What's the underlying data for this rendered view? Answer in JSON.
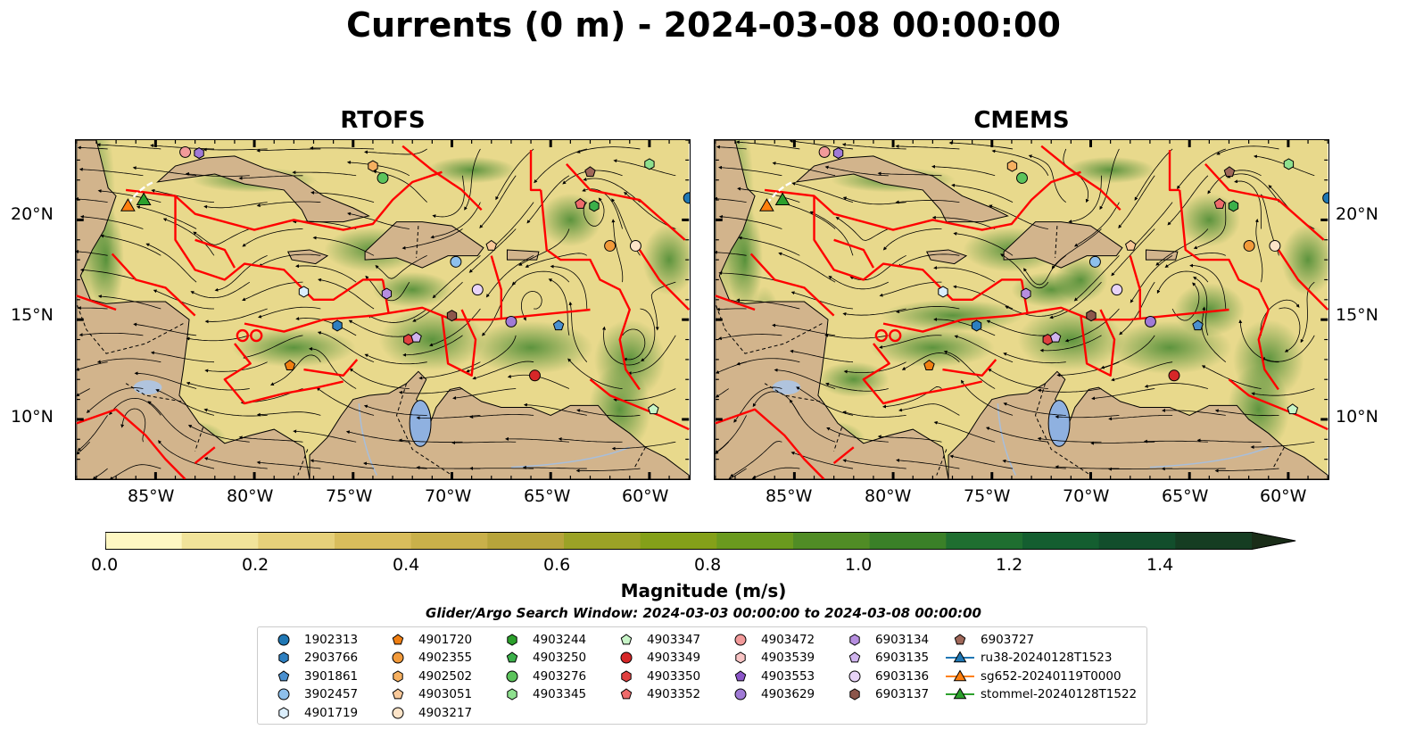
{
  "title": "Currents (0 m) - 2024-03-08 00:00:00",
  "panels": [
    {
      "title": "RTOFS"
    },
    {
      "title": "CMEMS"
    }
  ],
  "map": {
    "lon_range": [
      -89,
      -58
    ],
    "lat_range": [
      7,
      24
    ],
    "lon_ticks": [
      "85°W",
      "80°W",
      "75°W",
      "70°W",
      "65°W",
      "60°W"
    ],
    "lat_ticks": [
      "20°N",
      "15°N",
      "10°N"
    ],
    "colors": {
      "land": "#d2b48c",
      "boundary": "#ff0000",
      "water_bodies": "#8fb1e0",
      "rivers": "#a7bedb"
    }
  },
  "colorbar": {
    "title": "Magnitude (m/s)",
    "ticks": [
      "0.0",
      "0.2",
      "0.4",
      "0.6",
      "0.8",
      "1.0",
      "1.2",
      "1.4"
    ],
    "range": [
      0,
      1.5
    ],
    "extend": "max",
    "colors": [
      "#fef7c2",
      "#f1e39a",
      "#e6d07a",
      "#d9bd5c",
      "#c9b04a",
      "#b7a43b",
      "#9ba226",
      "#84a019",
      "#6a9a1e",
      "#508c25",
      "#3a8028",
      "#1f6e30",
      "#145e30",
      "#124e2c",
      "#153d22",
      "#1a2d18"
    ]
  },
  "search_window": "Glider/Argo Search Window: 2024-03-03 00:00:00 to 2024-03-08 00:00:00",
  "legend": [
    {
      "label": "1902313",
      "marker": "circle",
      "color": "#1f77b4"
    },
    {
      "label": "2903766",
      "marker": "hexagon",
      "color": "#2d7fc0"
    },
    {
      "label": "3901861",
      "marker": "pentagon",
      "color": "#4a90d0"
    },
    {
      "label": "3902457",
      "marker": "circle",
      "color": "#8ec0ec"
    },
    {
      "label": "4901719",
      "marker": "hexagon",
      "color": "#dbeefc"
    },
    {
      "label": "4901720",
      "marker": "pentagon",
      "color": "#f07f12"
    },
    {
      "label": "4902355",
      "marker": "circle",
      "color": "#f29a3a"
    },
    {
      "label": "4902502",
      "marker": "hexagon",
      "color": "#f6b060"
    },
    {
      "label": "4903051",
      "marker": "pentagon",
      "color": "#f9c99a"
    },
    {
      "label": "4903217",
      "marker": "circle",
      "color": "#fde4c8"
    },
    {
      "label": "4903244",
      "marker": "hexagon",
      "color": "#2ca02c"
    },
    {
      "label": "4903250",
      "marker": "pentagon",
      "color": "#3cb04a"
    },
    {
      "label": "4903276",
      "marker": "circle",
      "color": "#5cc45c"
    },
    {
      "label": "4903345",
      "marker": "hexagon",
      "color": "#8ee08e"
    },
    {
      "label": "4903347",
      "marker": "pentagon",
      "color": "#c8f5c8"
    },
    {
      "label": "4903349",
      "marker": "circle",
      "color": "#d62728"
    },
    {
      "label": "4903350",
      "marker": "hexagon",
      "color": "#e04040"
    },
    {
      "label": "4903352",
      "marker": "pentagon",
      "color": "#ee6b6b"
    },
    {
      "label": "4903472",
      "marker": "circle",
      "color": "#f29a9a"
    },
    {
      "label": "4903539",
      "marker": "hexagon",
      "color": "#f8c4c4"
    },
    {
      "label": "4903553",
      "marker": "pentagon",
      "color": "#8b55c8"
    },
    {
      "label": "4903629",
      "marker": "circle",
      "color": "#a07ad6"
    },
    {
      "label": "6903134",
      "marker": "hexagon",
      "color": "#b68ee0"
    },
    {
      "label": "6903135",
      "marker": "pentagon",
      "color": "#d0b4ee"
    },
    {
      "label": "6903136",
      "marker": "circle",
      "color": "#e8d4f8"
    },
    {
      "label": "6903137",
      "marker": "hexagon",
      "color": "#8c564b"
    },
    {
      "label": "6903727",
      "marker": "pentagon",
      "color": "#a0685a"
    },
    {
      "label": "ru38-20240128T1523",
      "marker": "triangle-line",
      "color": "#1f77b4"
    },
    {
      "label": "sg652-20240119T0000",
      "marker": "triangle-line",
      "color": "#ff7f0e"
    },
    {
      "label": "stommel-20240128T1522",
      "marker": "triangle-line",
      "color": "#2ca02c"
    }
  ],
  "floats": [
    {
      "lon": -83.5,
      "lat": 23.4,
      "color": "#f29a9a",
      "marker": "circle"
    },
    {
      "lon": -82.8,
      "lat": 23.35,
      "color": "#a07ad6",
      "marker": "hexagon"
    },
    {
      "lon": -74.0,
      "lat": 22.7,
      "color": "#f6b060",
      "marker": "hexagon"
    },
    {
      "lon": -73.5,
      "lat": 22.1,
      "color": "#5cc45c",
      "marker": "circle"
    },
    {
      "lon": -63.0,
      "lat": 22.4,
      "color": "#a0685a",
      "marker": "pentagon"
    },
    {
      "lon": -60.0,
      "lat": 22.8,
      "color": "#8ee08e",
      "marker": "hexagon"
    },
    {
      "lon": -58.0,
      "lat": 21.1,
      "color": "#1f77b4",
      "marker": "circle"
    },
    {
      "lon": -63.5,
      "lat": 20.8,
      "color": "#ee6b6b",
      "marker": "pentagon"
    },
    {
      "lon": -62.8,
      "lat": 20.7,
      "color": "#3cb04a",
      "marker": "hexagon"
    },
    {
      "lon": -62.0,
      "lat": 18.7,
      "color": "#f29a3a",
      "marker": "circle"
    },
    {
      "lon": -60.7,
      "lat": 18.7,
      "color": "#fde4c8",
      "marker": "circle"
    },
    {
      "lon": -68.0,
      "lat": 18.7,
      "color": "#f9c99a",
      "marker": "pentagon"
    },
    {
      "lon": -69.8,
      "lat": 17.9,
      "color": "#8ec0ec",
      "marker": "circle"
    },
    {
      "lon": -68.7,
      "lat": 16.5,
      "color": "#e8d4f8",
      "marker": "circle"
    },
    {
      "lon": -77.5,
      "lat": 16.4,
      "color": "#dbeefc",
      "marker": "hexagon"
    },
    {
      "lon": -73.3,
      "lat": 16.3,
      "color": "#b68ee0",
      "marker": "hexagon"
    },
    {
      "lon": -75.8,
      "lat": 14.7,
      "color": "#2d7fc0",
      "marker": "hexagon"
    },
    {
      "lon": -70.0,
      "lat": 15.2,
      "color": "#8c564b",
      "marker": "hexagon"
    },
    {
      "lon": -67.0,
      "lat": 14.9,
      "color": "#a07ad6",
      "marker": "circle"
    },
    {
      "lon": -64.6,
      "lat": 14.7,
      "color": "#4a90d0",
      "marker": "pentagon"
    },
    {
      "lon": -72.2,
      "lat": 14.0,
      "color": "#e04040",
      "marker": "hexagon"
    },
    {
      "lon": -71.8,
      "lat": 14.1,
      "color": "#d0b4ee",
      "marker": "pentagon"
    },
    {
      "lon": -78.2,
      "lat": 12.7,
      "color": "#f07f12",
      "marker": "pentagon"
    },
    {
      "lon": -65.8,
      "lat": 12.2,
      "color": "#d62728",
      "marker": "circle"
    },
    {
      "lon": -59.8,
      "lat": 10.5,
      "color": "#c8f5c8",
      "marker": "pentagon"
    }
  ],
  "gliders": [
    {
      "lon": -86.4,
      "lat": 20.65,
      "color": "#ff7f0e"
    },
    {
      "lon": -85.6,
      "lat": 20.95,
      "color": "#2ca02c"
    }
  ]
}
